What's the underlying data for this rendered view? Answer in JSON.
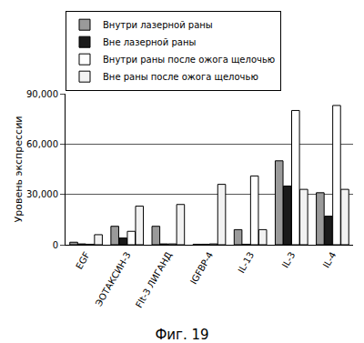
{
  "chart_data": {
    "type": "bar",
    "title": "Фиг. 19",
    "y_label": "Уровень экспрессии",
    "categories": [
      "EGF",
      "ЭОТАКСИН-3",
      "Flt-3 ЛИГАНД",
      "IGFBP-4",
      "IL-13",
      "IL-3",
      "IL-4"
    ],
    "series": [
      {
        "name": "Внутри лазерной раны",
        "color": "#9a9a9a",
        "values": [
          1500,
          11000,
          11000,
          300,
          9000,
          50000,
          31000
        ]
      },
      {
        "name": "Вне лазерной раны",
        "color": "#1a1a1a",
        "values": [
          500,
          4000,
          500,
          300,
          300,
          35000,
          17000
        ]
      },
      {
        "name": "Внутри раны после ожога щелочью",
        "color": "#ffffff",
        "values": [
          300,
          8000,
          500,
          500,
          41000,
          80000,
          83000
        ]
      },
      {
        "name": "Вне раны после ожога щелочью",
        "color": "#f2f2f2",
        "values": [
          6000,
          23000,
          24000,
          36000,
          9000,
          33000,
          33000
        ]
      }
    ],
    "ylim": [
      0,
      90000
    ],
    "yticks": [
      0,
      {
        "value": 30000,
        "label": "30,000"
      },
      {
        "value": 60000,
        "label": "60,000"
      },
      {
        "value": 90000,
        "label": "90,000"
      }
    ],
    "grid": true,
    "legend": "top left"
  }
}
